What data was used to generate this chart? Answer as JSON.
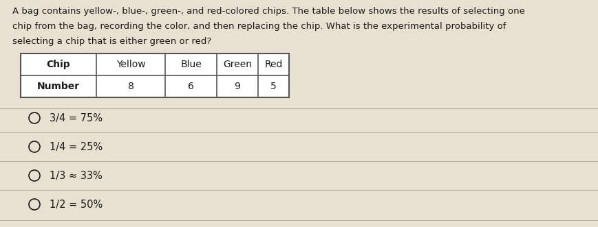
{
  "background_color": "#e8e0d0",
  "question_text_lines": [
    "A bag contains yellow-, blue-, green-, and red-colored chips. The table below shows the results of selecting one",
    "chip from the bag, recording the color, and then replacing the chip. What is the experimental probability of",
    "selecting a chip that is either green or red?"
  ],
  "table_headers": [
    "Chip",
    "Yellow",
    "Blue",
    "Green",
    "Red"
  ],
  "table_row_label": "Number",
  "table_values": [
    "8",
    "6",
    "9",
    "5"
  ],
  "answer_choices": [
    "3/4 = 75%",
    "1/4 = 25%",
    "1/3 ≈ 33%",
    "1/2 = 50%"
  ],
  "text_color": "#1a1a1a",
  "table_border_color": "#555555",
  "divider_color": "#b8b0a0",
  "question_fontsize": 9.5,
  "answer_fontsize": 10.5,
  "table_header_fontsize": 10,
  "table_data_fontsize": 10
}
